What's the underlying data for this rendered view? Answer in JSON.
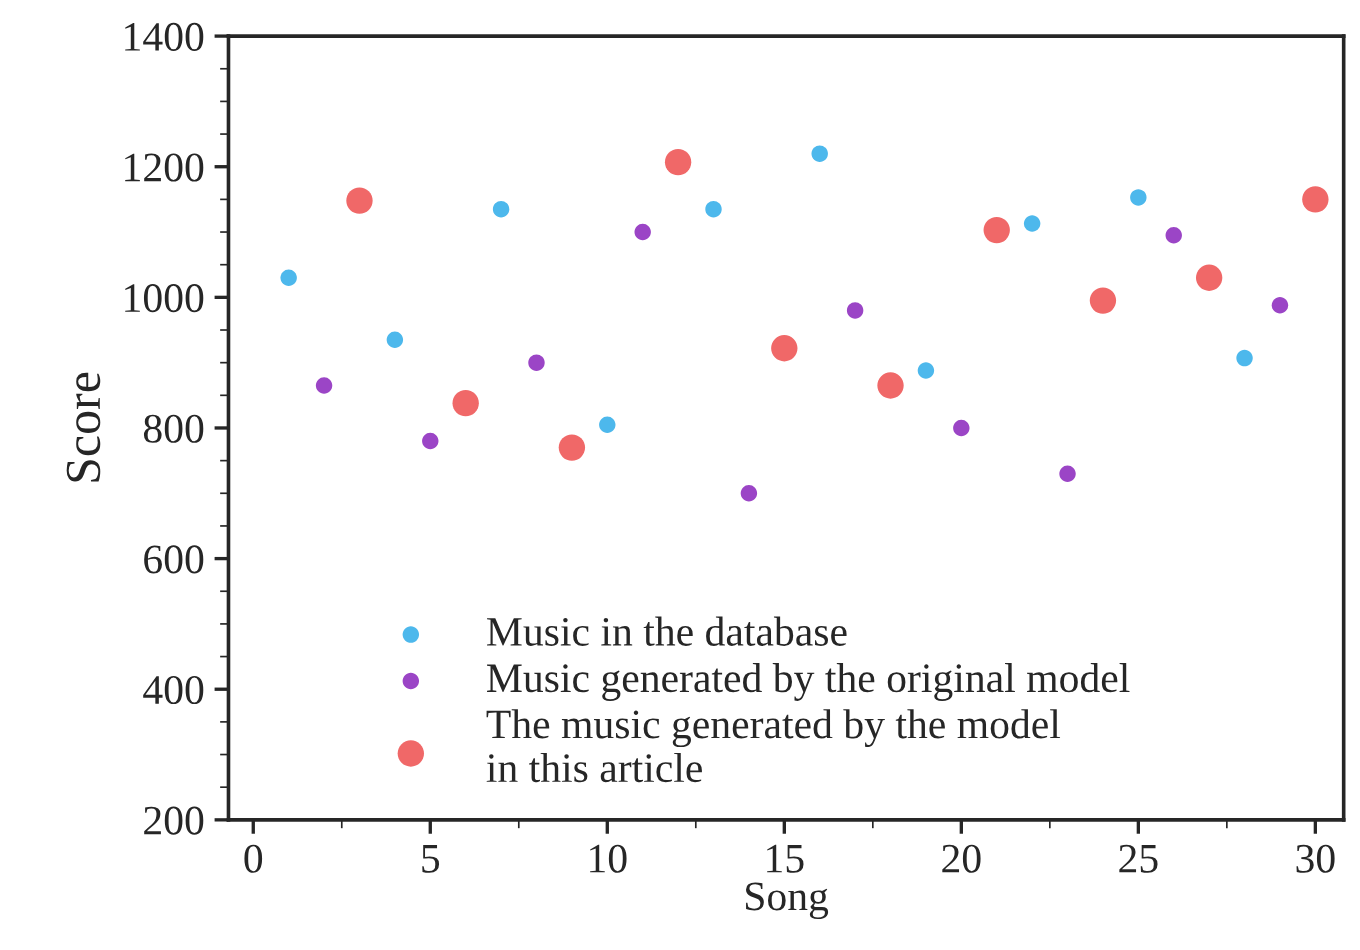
{
  "chart_data": {
    "type": "scatter",
    "xlabel": "Song",
    "ylabel": "Score",
    "xlim": [
      -0.7,
      30.8
    ],
    "xticks": [
      0,
      5,
      10,
      15,
      20,
      25,
      30
    ],
    "ylim": [
      200,
      1400
    ],
    "yticks": [
      200,
      400,
      600,
      800,
      1000,
      1200,
      1400
    ],
    "legend": "bottom left",
    "grid": false,
    "marker": "circle",
    "series": [
      {
        "name": "Music in the database",
        "color": "#4db8ec",
        "x": [
          1,
          4,
          7,
          10,
          13,
          16,
          19,
          22,
          25,
          28
        ],
        "values": [
          1030,
          935,
          1135,
          805,
          1135,
          1220,
          888,
          1113,
          1153,
          907
        ]
      },
      {
        "name": "Music generated by the original model",
        "color": "#9b45c6",
        "x": [
          2,
          5,
          8,
          11,
          14,
          17,
          20,
          23,
          26,
          29
        ],
        "values": [
          865,
          780,
          900,
          1100,
          700,
          980,
          800,
          730,
          1095,
          988
        ]
      },
      {
        "name": "The music generated by the model\nin this article",
        "color": "#f06868",
        "x": [
          3,
          6,
          9,
          12,
          15,
          18,
          21,
          24,
          27,
          30
        ],
        "values": [
          1148,
          838,
          770,
          1207,
          922,
          865,
          1103,
          995,
          1030,
          1150
        ]
      }
    ]
  }
}
